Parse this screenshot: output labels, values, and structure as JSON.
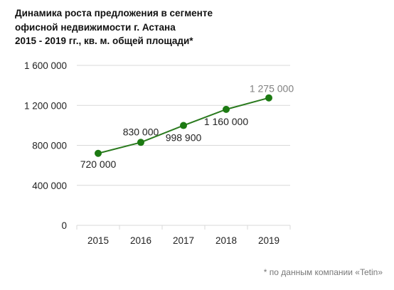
{
  "title_lines": [
    "Динамика роста предложения в сегменте",
    "офисной недвижимости г. Астана",
    "2015 - 2019 гг., кв. м. общей площади*"
  ],
  "footnote": "* по данным компании «Tetin»",
  "colors": {
    "line": "#2a7a1e",
    "marker": "#1c7a12",
    "grid": "#d9d9d9",
    "axis_text": "#222222",
    "data_label": "#222222",
    "last_label": "#808080",
    "footnote": "#777777"
  },
  "chart_data": {
    "type": "line",
    "categories": [
      "2015",
      "2016",
      "2017",
      "2018",
      "2019"
    ],
    "values": [
      720000,
      830000,
      998900,
      1160000,
      1275000
    ],
    "data_labels": [
      "720 000",
      "830 000",
      "998 900",
      "1 160 000",
      "1 275 000"
    ],
    "ylim": [
      0,
      1600000
    ],
    "yticks": [
      0,
      400000,
      800000,
      1200000,
      1600000
    ],
    "ytick_labels": [
      "0",
      "400 000",
      "800 000",
      "1 200 000",
      "1 600 000"
    ],
    "grid": true,
    "legend": "none"
  }
}
